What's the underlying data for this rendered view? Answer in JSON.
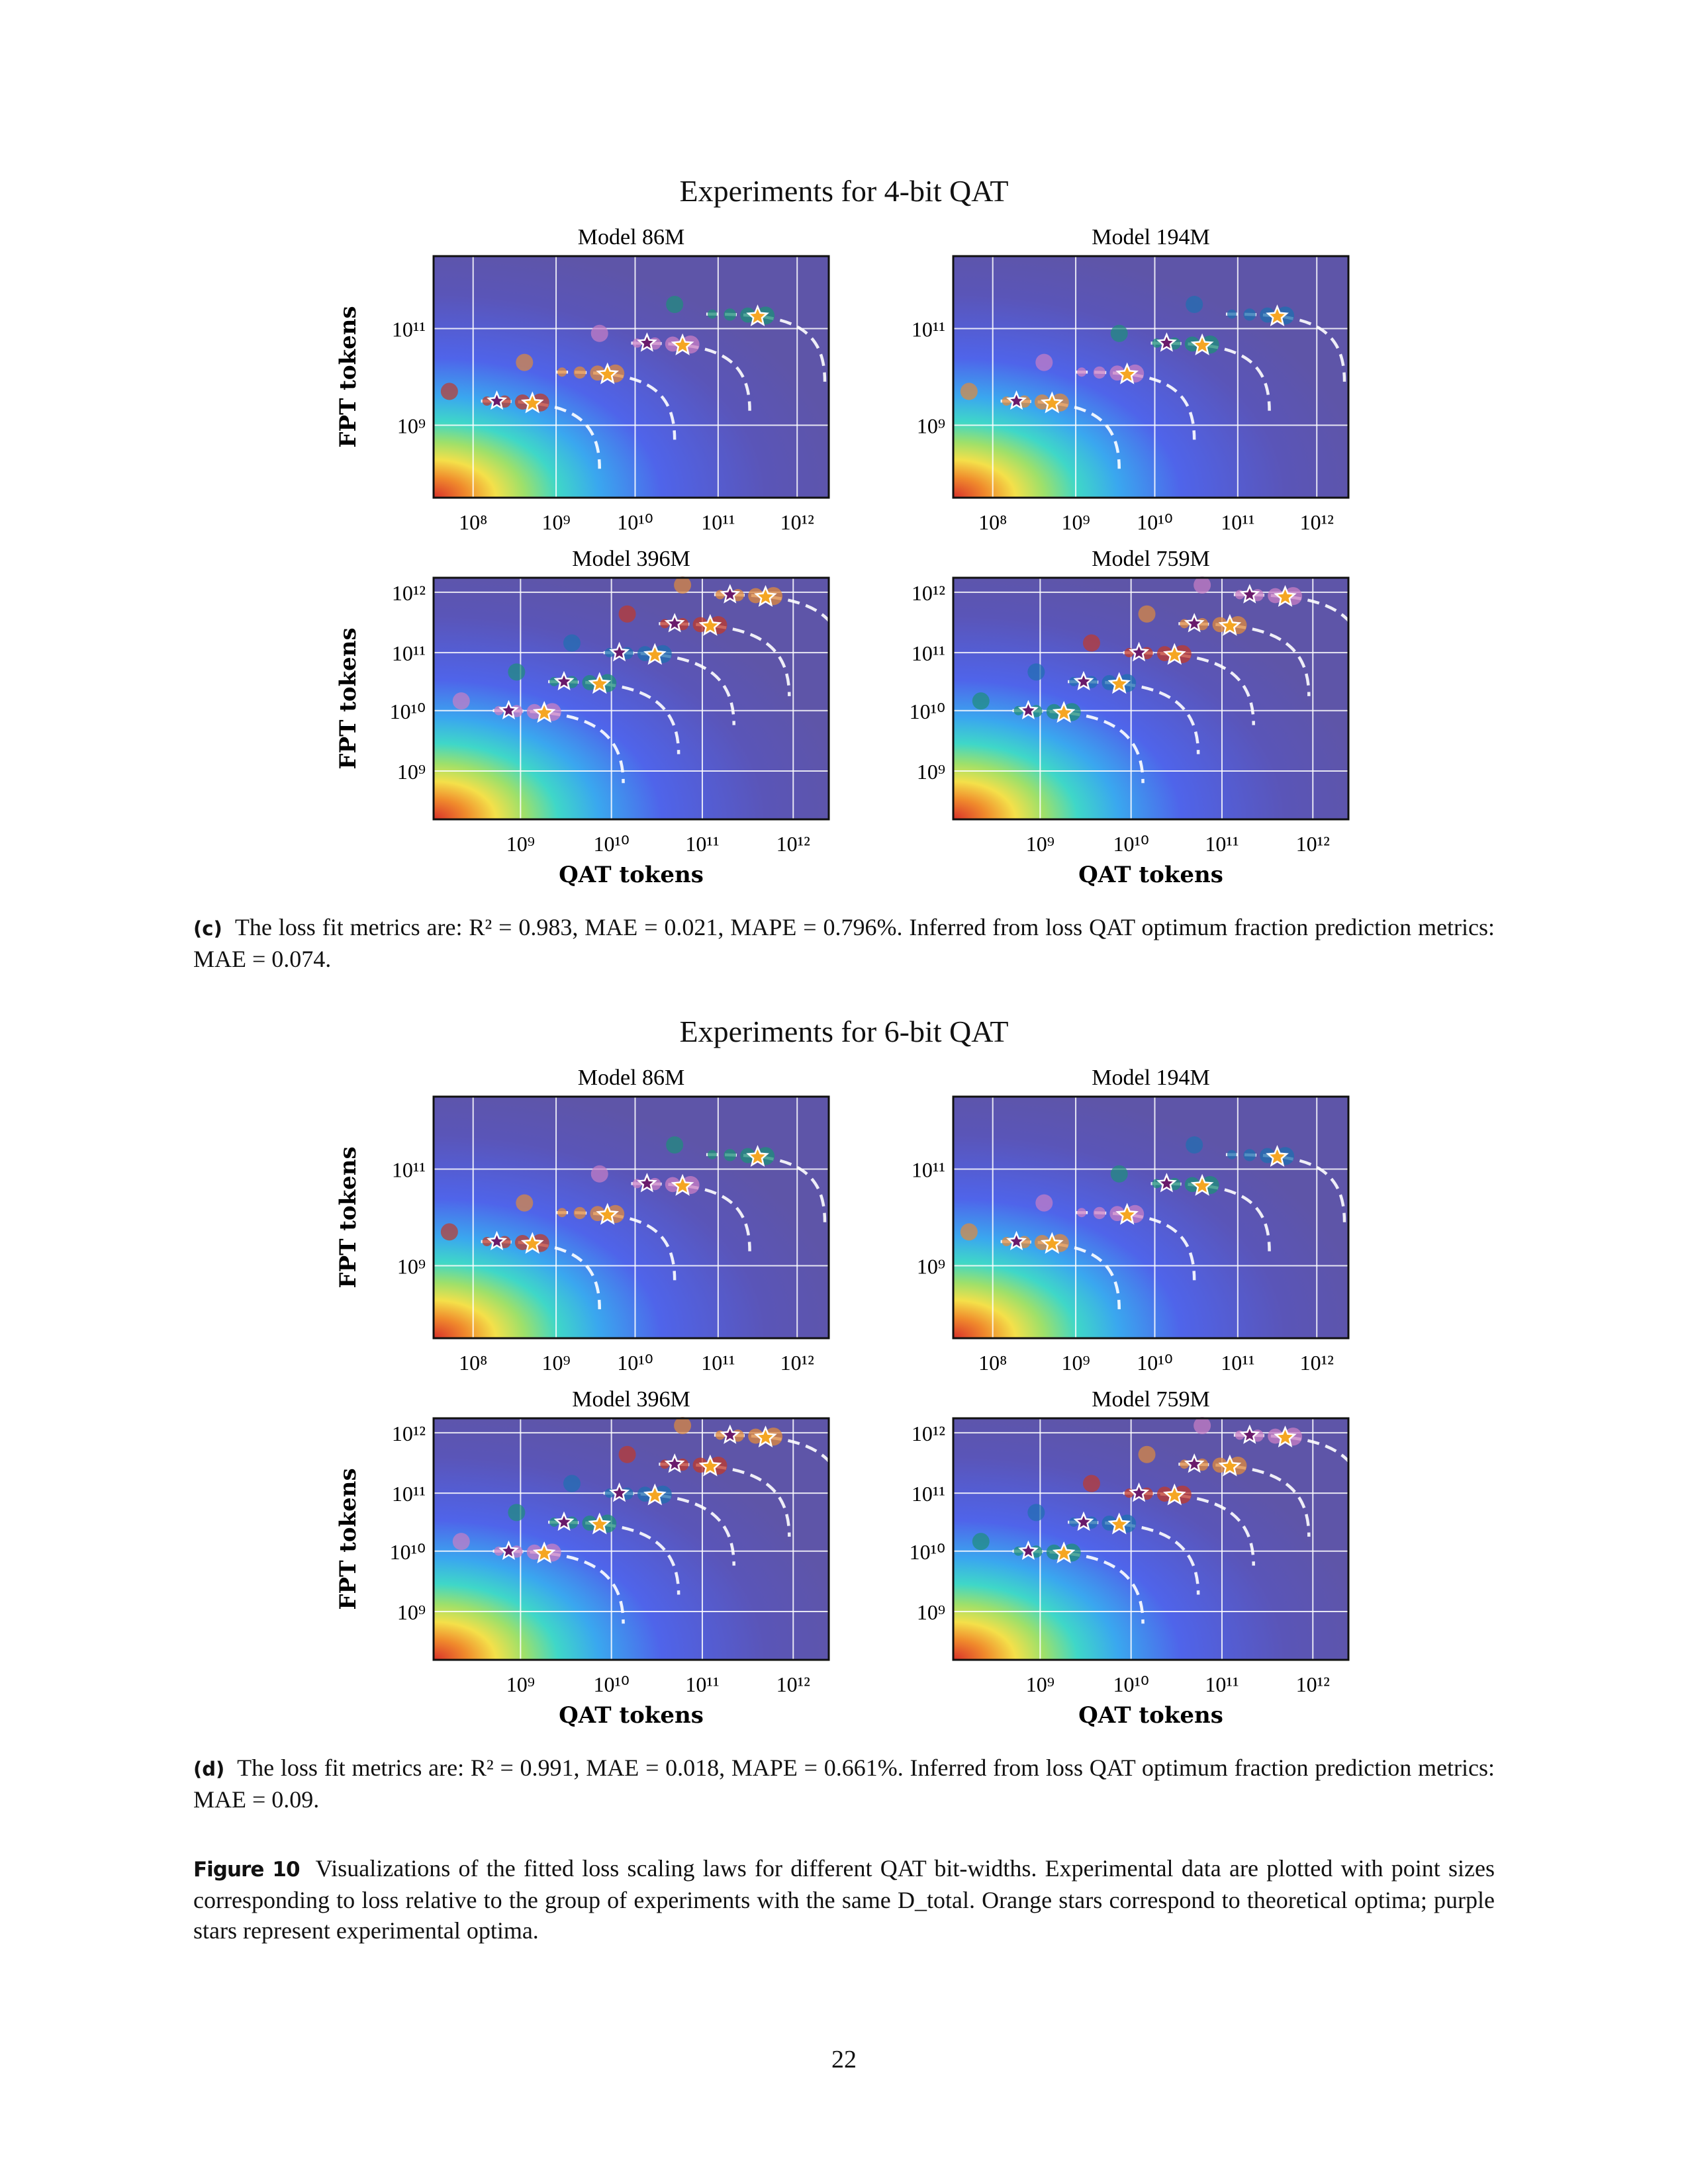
{
  "colors": {
    "accent_series": [
      "#c0392b",
      "#e08a3c",
      "#c97fc4",
      "#1e8f7a",
      "#1f6fb0"
    ],
    "theory_star": "#f5a623",
    "experiment_star": "#6a1b6b"
  },
  "figures": [
    {
      "title": "Experiments for 4-bit QAT",
      "caption_tag": "(c)",
      "caption": "The loss fit metrics are: R² = 0.983, MAE = 0.021, MAPE = 0.796%. Inferred from loss QAT optimum fraction prediction metrics: MAE = 0.074.",
      "panels": [
        {
          "title": "Model 86M",
          "ylabel": "FPT tokens",
          "xlabel": "",
          "yticks": [
            "10¹¹",
            "10⁹"
          ],
          "xticks": [
            "10⁸",
            "10⁹",
            "10¹⁰",
            "10¹¹",
            "10¹²"
          ]
        },
        {
          "title": "Model 194M",
          "ylabel": "",
          "xlabel": "",
          "yticks": [
            "10¹¹",
            "10⁹"
          ],
          "xticks": [
            "10⁸",
            "10⁹",
            "10¹⁰",
            "10¹¹",
            "10¹²"
          ]
        },
        {
          "title": "Model 396M",
          "ylabel": "FPT tokens",
          "xlabel": "QAT tokens",
          "yticks": [
            "10¹²",
            "10¹¹",
            "10¹⁰",
            "10⁹"
          ],
          "xticks": [
            "10⁹",
            "10¹⁰",
            "10¹¹",
            "10¹²"
          ]
        },
        {
          "title": "Model 759M",
          "ylabel": "",
          "xlabel": "QAT tokens",
          "yticks": [
            "10¹²",
            "10¹¹",
            "10¹⁰",
            "10⁹"
          ],
          "xticks": [
            "10⁹",
            "10¹⁰",
            "10¹¹",
            "10¹²"
          ]
        }
      ]
    },
    {
      "title": "Experiments for 6-bit QAT",
      "caption_tag": "(d)",
      "caption": "The loss fit metrics are: R² = 0.991, MAE = 0.018, MAPE = 0.661%. Inferred from loss QAT optimum fraction prediction metrics: MAE = 0.09.",
      "panels": [
        {
          "title": "Model 86M",
          "ylabel": "FPT tokens",
          "xlabel": "",
          "yticks": [
            "10¹¹",
            "10⁹"
          ],
          "xticks": [
            "10⁸",
            "10⁹",
            "10¹⁰",
            "10¹¹",
            "10¹²"
          ]
        },
        {
          "title": "Model 194M",
          "ylabel": "",
          "xlabel": "",
          "yticks": [
            "10¹¹",
            "10⁹"
          ],
          "xticks": [
            "10⁸",
            "10⁹",
            "10¹⁰",
            "10¹¹",
            "10¹²"
          ]
        },
        {
          "title": "Model 396M",
          "ylabel": "FPT tokens",
          "xlabel": "QAT tokens",
          "yticks": [
            "10¹²",
            "10¹¹",
            "10¹⁰",
            "10⁹"
          ],
          "xticks": [
            "10⁹",
            "10¹⁰",
            "10¹¹",
            "10¹²"
          ]
        },
        {
          "title": "Model 759M",
          "ylabel": "",
          "xlabel": "QAT tokens",
          "yticks": [
            "10¹²",
            "10¹¹",
            "10¹⁰",
            "10⁹"
          ],
          "xticks": [
            "10⁹",
            "10¹⁰",
            "10¹¹",
            "10¹²"
          ]
        }
      ]
    }
  ],
  "figure_caption": {
    "label": "Figure 10",
    "text": "Visualizations of the fitted loss scaling laws for different QAT bit-widths. Experimental data are plotted with point sizes corresponding to loss relative to the group of experiments with the same D_total. Orange stars correspond to theoretical optima; purple stars represent experimental optima."
  },
  "page_number": "22",
  "chart_data": [
    {
      "type": "scatter",
      "title": "Model 86M",
      "xscale": "log",
      "yscale": "log",
      "xlim": [
        30000000.0,
        3000000000000.0
      ],
      "ylim": [
        30000000.0,
        3000000000000.0
      ],
      "series": [
        {
          "x": [
            100000000.0,
            1200000000.0
          ],
          "y": [
            3000000000.0,
            3000000000.0
          ]
        },
        {
          "x": [
            4000000000.0,
            40000000000.0
          ],
          "y": [
            20000000000.0,
            20000000000.0
          ]
        },
        {
          "x": [
            10000000000.0,
            120000000000.0
          ],
          "y": [
            120000000000.0,
            120000000000.0
          ]
        },
        {
          "x": [
            30000000000.0,
            400000000000.0
          ],
          "y": [
            600000000000.0,
            600000000000.0
          ]
        }
      ]
    },
    {
      "type": "scatter",
      "title": "Model 194M",
      "xscale": "log",
      "yscale": "log",
      "xlim": [
        30000000.0,
        3000000000000.0
      ],
      "ylim": [
        30000000.0,
        3000000000000.0
      ],
      "series": [
        {
          "x": [
            400000000.0,
            4000000000.0
          ],
          "y": [
            3000000000.0,
            3000000000.0
          ]
        },
        {
          "x": [
            1000000000.0,
            12000000000.0
          ],
          "y": [
            20000000000.0,
            20000000000.0
          ]
        },
        {
          "x": [
            10000000000.0,
            100000000000.0
          ],
          "y": [
            120000000000.0,
            120000000000.0
          ]
        },
        {
          "x": [
            30000000000.0,
            600000000000.0
          ],
          "y": [
            600000000000.0,
            600000000000.0
          ]
        }
      ]
    },
    {
      "type": "scatter",
      "title": "Model 396M",
      "xscale": "log",
      "yscale": "log",
      "xlim": [
        100000000.0,
        3000000000000.0
      ],
      "ylim": [
        50000000.0,
        3000000000000.0
      ]
    },
    {
      "type": "scatter",
      "title": "Model 759M",
      "xscale": "log",
      "yscale": "log",
      "xlim": [
        100000000.0,
        3000000000000.0
      ],
      "ylim": [
        50000000.0,
        3000000000000.0
      ]
    }
  ]
}
